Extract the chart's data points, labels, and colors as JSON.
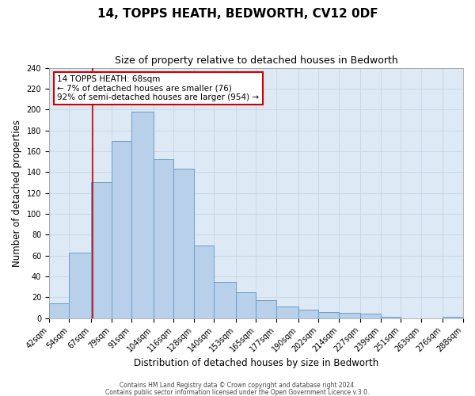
{
  "title": "14, TOPPS HEATH, BEDWORTH, CV12 0DF",
  "subtitle": "Size of property relative to detached houses in Bedworth",
  "xlabel": "Distribution of detached houses by size in Bedworth",
  "ylabel": "Number of detached properties",
  "bin_edges": [
    42,
    54,
    67,
    79,
    91,
    104,
    116,
    128,
    140,
    153,
    165,
    177,
    190,
    202,
    214,
    227,
    239,
    251,
    263,
    276,
    288
  ],
  "bar_heights": [
    14,
    63,
    130,
    170,
    198,
    152,
    143,
    70,
    35,
    25,
    17,
    11,
    8,
    6,
    5,
    4,
    1,
    0,
    0,
    1
  ],
  "bar_color": "#b8d0ea",
  "bar_edge_color": "#6a9fc8",
  "grid_color": "#c8d8ea",
  "bg_color": "#ddeaf5",
  "red_line_x": 68,
  "annotation_title": "14 TOPPS HEATH: 68sqm",
  "annotation_line1": "← 7% of detached houses are smaller (76)",
  "annotation_line2": "92% of semi-detached houses are larger (954) →",
  "annotation_box_color": "#ffffff",
  "annotation_border_color": "#cc0000",
  "footer1": "Contains HM Land Registry data © Crown copyright and database right 2024.",
  "footer2": "Contains public sector information licensed under the Open Government Licence v.3.0.",
  "ylim": [
    0,
    240
  ],
  "title_fontsize": 11,
  "subtitle_fontsize": 9,
  "xlabel_fontsize": 8.5,
  "ylabel_fontsize": 8.5,
  "tick_fontsize": 7,
  "annot_fontsize": 7.5,
  "footer_fontsize": 5.5
}
